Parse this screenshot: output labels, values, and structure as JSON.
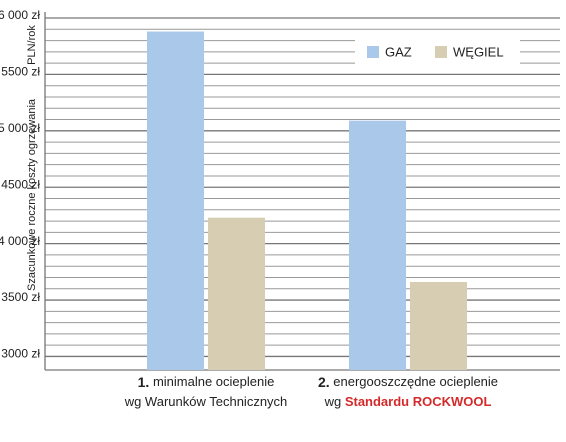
{
  "chart_data": {
    "type": "bar",
    "y_axis_title": "Szacunkowe roczne koszty ogrzewania",
    "y_axis_unit": "PLN/rok",
    "categories": [
      [
        "1.",
        "minimalne ocieplenie",
        "wg Warunków Technicznych"
      ],
      [
        "2.",
        "energooszczędne ocieplenie",
        "wg",
        "Standardu ROCKWOOL"
      ]
    ],
    "series": [
      {
        "name": "GAZ",
        "color": "#a9c8ea",
        "values": [
          5880,
          5090
        ]
      },
      {
        "name": "WĘGIEL",
        "color": "#d7cdb3",
        "values": [
          4230,
          3660
        ]
      }
    ],
    "ylim": [
      2880,
      6000
    ],
    "yticks": [
      {
        "value": 3000,
        "label": "3000 zł"
      },
      {
        "value": 3500,
        "label": "3500 zł"
      },
      {
        "value": 4000,
        "label": "4 000 zł"
      },
      {
        "value": 4500,
        "label": "4500 zł"
      },
      {
        "value": 5000,
        "label": "5 000 zł"
      },
      {
        "value": 5500,
        "label": "5500 zł"
      },
      {
        "value": 6000,
        "label": "6 000 zł"
      }
    ],
    "y_minor_ticks": [
      3100,
      3200,
      3300,
      3400,
      3600,
      3700,
      3800,
      3900,
      4100,
      4200,
      4300,
      4400,
      4600,
      4700,
      4800,
      4900,
      5100,
      5200,
      5300,
      5400,
      5600,
      5700,
      5800,
      5900
    ],
    "grid": true,
    "legend": "top-right",
    "highlight_color": "#d42a2a"
  }
}
